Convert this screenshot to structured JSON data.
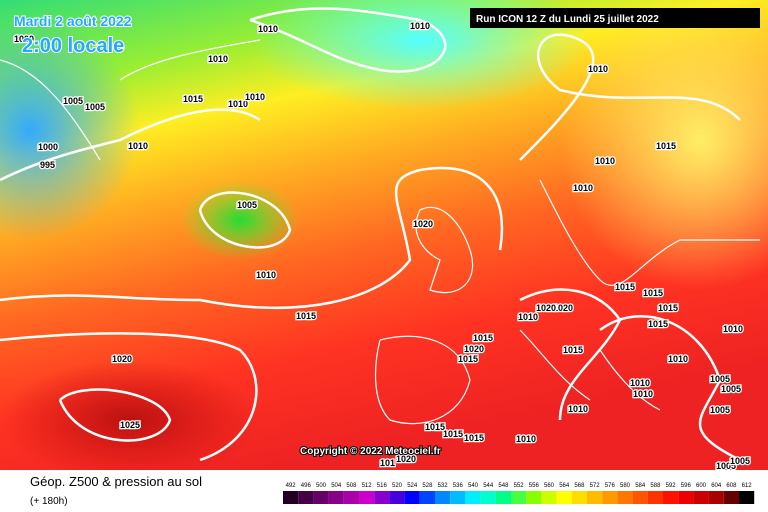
{
  "header": {
    "date": "Mardi 2 août 2022",
    "time": "2:00 locale",
    "run": "Run ICON 12 Z du Lundi 25 juillet 2022"
  },
  "isobar_labels": [
    1000,
    1010,
    1010,
    1010,
    1015,
    1010,
    1010,
    1005,
    1005,
    1000,
    995,
    1010,
    1005,
    1010,
    1015,
    1020,
    1025,
    1010,
    1015,
    1010,
    1010,
    1020,
    1015,
    1015,
    1015,
    1015,
    1010,
    1010,
    1020,
    1020,
    1015,
    1020,
    1015,
    1015,
    1010,
    1005,
    1005,
    1010,
    1010,
    1005,
    1010,
    1015,
    1015,
    1015,
    1010,
    1005,
    1005,
    1020,
    101
  ],
  "copyright": "Copyright © 2022 Meteociel.fr",
  "footer": {
    "title": "Géop. Z500 & pression au sol",
    "lead": "(+ 180h)"
  },
  "scale": [
    492,
    496,
    500,
    504,
    508,
    512,
    516,
    520,
    524,
    528,
    532,
    536,
    540,
    544,
    548,
    552,
    556,
    560,
    564,
    568,
    572,
    576,
    580,
    584,
    588,
    592,
    596,
    600,
    604,
    608,
    612
  ]
}
